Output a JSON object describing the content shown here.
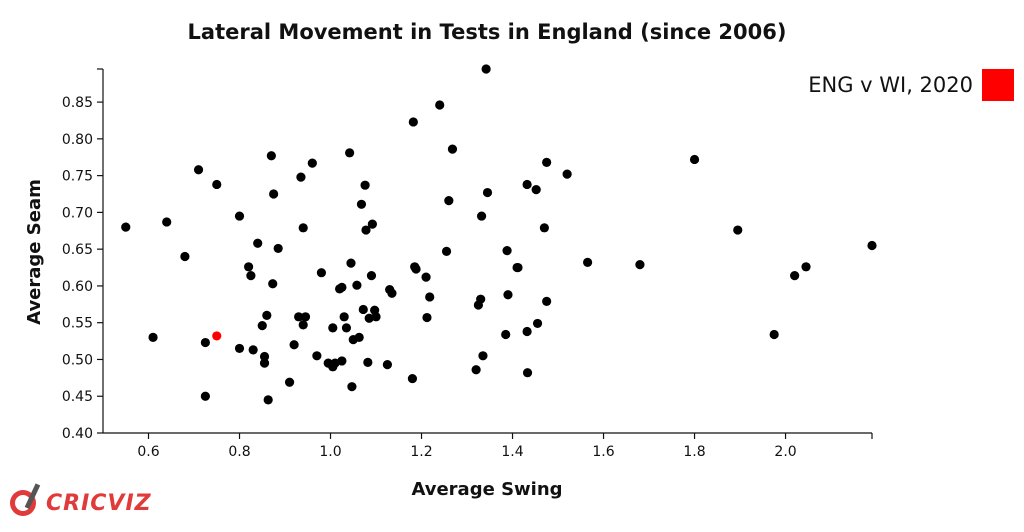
{
  "chart_data": {
    "type": "scatter",
    "title": "Lateral Movement in Tests in England (since 2006)",
    "xlabel": "Average Swing",
    "ylabel": "Average Seam",
    "xlim": [
      0.5,
      2.19
    ],
    "ylim": [
      0.4,
      0.895
    ],
    "xticks": [
      "0.6",
      "0.8",
      "1.0",
      "1.2",
      "1.4",
      "1.6",
      "1.8",
      "2.0"
    ],
    "yticks": [
      "0.40",
      "0.45",
      "0.50",
      "0.55",
      "0.60",
      "0.65",
      "0.70",
      "0.75",
      "0.80",
      "0.85"
    ],
    "grid": false,
    "legend": {
      "position": "top-right",
      "entries": [
        {
          "name": "ENG v WI, 2020",
          "color": "#ff0000"
        }
      ]
    },
    "series": [
      {
        "color": "#000000",
        "points": [
          [
            0.55,
            0.68
          ],
          [
            0.61,
            0.53
          ],
          [
            0.64,
            0.687
          ],
          [
            0.68,
            0.64
          ],
          [
            0.71,
            0.758
          ],
          [
            0.725,
            0.523
          ],
          [
            0.725,
            0.45
          ],
          [
            0.75,
            0.738
          ],
          [
            0.8,
            0.695
          ],
          [
            0.8,
            0.515
          ],
          [
            0.82,
            0.626
          ],
          [
            0.825,
            0.614
          ],
          [
            0.83,
            0.513
          ],
          [
            0.84,
            0.658
          ],
          [
            0.85,
            0.546
          ],
          [
            0.855,
            0.504
          ],
          [
            0.855,
            0.495
          ],
          [
            0.86,
            0.56
          ],
          [
            0.863,
            0.445
          ],
          [
            0.87,
            0.777
          ],
          [
            0.873,
            0.603
          ],
          [
            0.875,
            0.725
          ],
          [
            0.885,
            0.651
          ],
          [
            0.91,
            0.469
          ],
          [
            0.92,
            0.52
          ],
          [
            0.93,
            0.558
          ],
          [
            0.935,
            0.748
          ],
          [
            0.94,
            0.679
          ],
          [
            0.94,
            0.547
          ],
          [
            0.945,
            0.558
          ],
          [
            0.96,
            0.767
          ],
          [
            0.97,
            0.505
          ],
          [
            0.98,
            0.618
          ],
          [
            0.995,
            0.495
          ],
          [
            1.005,
            0.543
          ],
          [
            1.005,
            0.49
          ],
          [
            1.01,
            0.495
          ],
          [
            1.02,
            0.596
          ],
          [
            1.025,
            0.598
          ],
          [
            1.025,
            0.498
          ],
          [
            1.03,
            0.558
          ],
          [
            1.035,
            0.543
          ],
          [
            1.042,
            0.781
          ],
          [
            1.045,
            0.631
          ],
          [
            1.047,
            0.463
          ],
          [
            1.05,
            0.527
          ],
          [
            1.058,
            0.601
          ],
          [
            1.063,
            0.53
          ],
          [
            1.068,
            0.711
          ],
          [
            1.072,
            0.568
          ],
          [
            1.076,
            0.737
          ],
          [
            1.078,
            0.676
          ],
          [
            1.082,
            0.496
          ],
          [
            1.085,
            0.556
          ],
          [
            1.09,
            0.614
          ],
          [
            1.092,
            0.684
          ],
          [
            1.097,
            0.567
          ],
          [
            1.1,
            0.558
          ],
          [
            1.125,
            0.493
          ],
          [
            1.13,
            0.595
          ],
          [
            1.135,
            0.59
          ],
          [
            1.18,
            0.474
          ],
          [
            1.182,
            0.823
          ],
          [
            1.185,
            0.626
          ],
          [
            1.188,
            0.623
          ],
          [
            1.21,
            0.612
          ],
          [
            1.212,
            0.557
          ],
          [
            1.218,
            0.585
          ],
          [
            1.24,
            0.846
          ],
          [
            1.255,
            0.647
          ],
          [
            1.26,
            0.716
          ],
          [
            1.268,
            0.786
          ],
          [
            1.32,
            0.486
          ],
          [
            1.325,
            0.574
          ],
          [
            1.33,
            0.582
          ],
          [
            1.332,
            0.695
          ],
          [
            1.335,
            0.505
          ],
          [
            1.342,
            0.895
          ],
          [
            1.345,
            0.727
          ],
          [
            1.385,
            0.534
          ],
          [
            1.388,
            0.648
          ],
          [
            1.39,
            0.588
          ],
          [
            1.41,
            0.625
          ],
          [
            1.412,
            0.625
          ],
          [
            1.432,
            0.538
          ],
          [
            1.432,
            0.738
          ],
          [
            1.433,
            0.482
          ],
          [
            1.452,
            0.731
          ],
          [
            1.455,
            0.549
          ],
          [
            1.47,
            0.679
          ],
          [
            1.475,
            0.768
          ],
          [
            1.475,
            0.579
          ],
          [
            1.52,
            0.752
          ],
          [
            1.565,
            0.632
          ],
          [
            1.68,
            0.629
          ],
          [
            1.8,
            0.772
          ],
          [
            1.895,
            0.676
          ],
          [
            1.975,
            0.534
          ],
          [
            2.02,
            0.614
          ],
          [
            2.045,
            0.626
          ],
          [
            2.19,
            0.655
          ]
        ]
      },
      {
        "name": "ENG v WI, 2020",
        "color": "#ff0000",
        "points": [
          [
            0.75,
            0.532
          ]
        ]
      }
    ]
  },
  "brand": {
    "logo_text": "CRICVIZ",
    "icon": "cricket-bat-icon"
  }
}
